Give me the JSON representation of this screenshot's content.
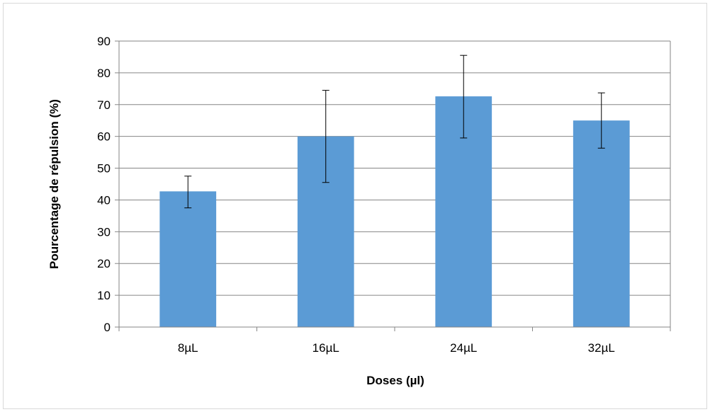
{
  "chart_data": {
    "type": "bar",
    "categories": [
      "8µL",
      "16µL",
      "24µL",
      "32µL"
    ],
    "values": [
      42.7,
      60.0,
      72.6,
      65.0
    ],
    "error_low": [
      37.5,
      45.5,
      59.5,
      56.3
    ],
    "error_high": [
      47.5,
      74.5,
      85.5,
      73.7
    ],
    "title": "",
    "xlabel": "Doses  (µl)",
    "ylabel": "Pourcentage de répulsion (%)",
    "ylim": [
      0,
      90
    ],
    "yticks": [
      0,
      10,
      20,
      30,
      40,
      50,
      60,
      70,
      80,
      90
    ],
    "grid": true,
    "legend": "none",
    "bar_color": "#5b9bd5",
    "grid_color": "#868686",
    "axis_color": "#868686",
    "error_bar_color": "#000000"
  }
}
